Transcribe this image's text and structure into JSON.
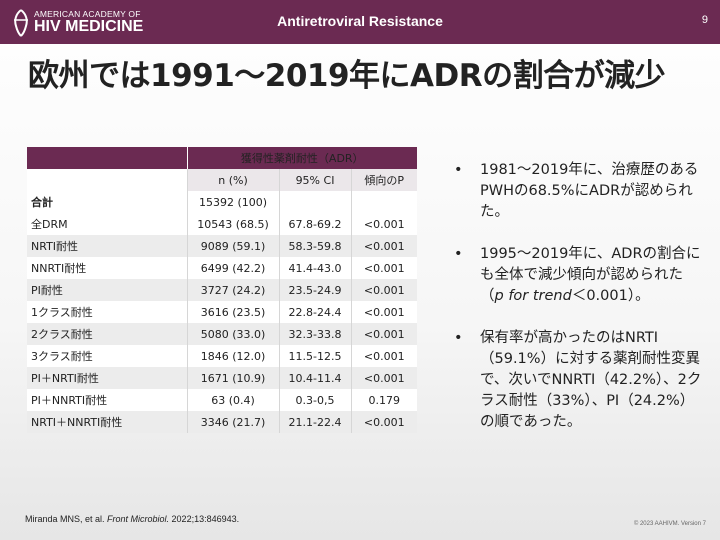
{
  "header": {
    "logo_top": "AMERICAN ACADEMY OF",
    "logo_bottom": "HIV MEDICINE",
    "section_title": "Antiretroviral Resistance",
    "page_number": "9",
    "bar_color": "#6b2a52"
  },
  "title": "欧州では1991～2019年にADRの割合が減少",
  "table": {
    "group_header": "獲得性薬剤耐性（ADR）",
    "columns": [
      "n (%)",
      "95% CI",
      "傾向のP"
    ],
    "total_row": {
      "label": "合計",
      "n": "15392 (100)",
      "ci": "",
      "p": ""
    },
    "rows": [
      {
        "label": "全DRM",
        "n": "10543 (68.5)",
        "ci": "67.8-69.2",
        "p": "<0.001"
      },
      {
        "label": "NRTI耐性",
        "n": "9089 (59.1)",
        "ci": "58.3-59.8",
        "p": "<0.001"
      },
      {
        "label": "NNRTI耐性",
        "n": "6499 (42.2)",
        "ci": "41.4-43.0",
        "p": "<0.001"
      },
      {
        "label": "PI耐性",
        "n": "3727 (24.2)",
        "ci": "23.5-24.9",
        "p": "<0.001"
      },
      {
        "label": "1クラス耐性",
        "n": "3616 (23.5)",
        "ci": "22.8-24.4",
        "p": "<0.001"
      },
      {
        "label": "2クラス耐性",
        "n": "5080 (33.0)",
        "ci": "32.3-33.8",
        "p": "<0.001"
      },
      {
        "label": "3クラス耐性",
        "n": "1846 (12.0)",
        "ci": "11.5-12.5",
        "p": "<0.001"
      },
      {
        "label": "PI＋NRTI耐性",
        "n": "1671 (10.9)",
        "ci": "10.4-11.4",
        "p": "<0.001"
      },
      {
        "label": "PI＋NNRTI耐性",
        "n": "63 (0.4)",
        "ci": "0.3-0,5",
        "p": "0.179"
      },
      {
        "label": "NRTI＋NNRTI耐性",
        "n": "3346 (21.7)",
        "ci": "21.1-22.4",
        "p": "<0.001"
      }
    ]
  },
  "bullets": {
    "b1": "1981～2019年に、治療歴のあるPWHの68.5%にADRが認められた。",
    "b2_pre": "1995～2019年に、ADRの割合にも全体で減少傾向が認められた（",
    "b2_em": "p for trend",
    "b2_post": "＜0.001）。",
    "b3": "保有率が高かったのはNRTI（59.1%）に対する薬剤耐性変異で、次いでNNRTI（42.2%）、2クラス耐性（33%）、PI（24.2%）の順であった。"
  },
  "citation": {
    "authors": "Miranda MNS, et al. ",
    "journal": "Front Microbiol.",
    "ref": " 2022;13:846943."
  },
  "copyright": "© 2023 AAHIVM. Version 7"
}
